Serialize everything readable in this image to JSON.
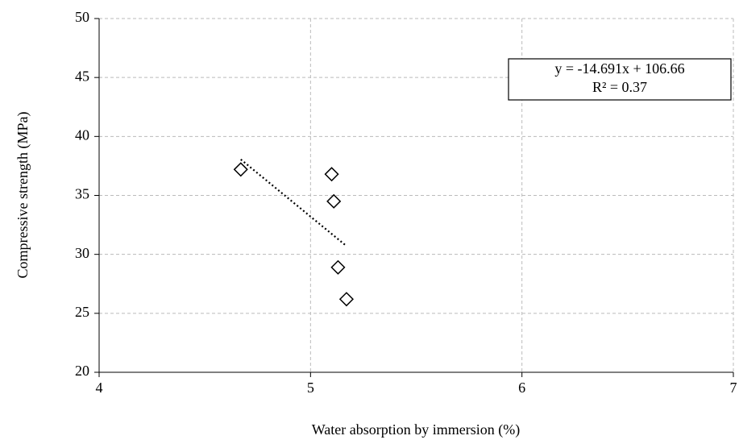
{
  "chart_data": {
    "type": "scatter",
    "x_label": "Water absorption by immersion  (%)",
    "y_label": "Compressive strength (MPa)",
    "series": [
      {
        "x": [
          4.67,
          5.1,
          5.11,
          5.13,
          5.17
        ],
        "values": [
          37.2,
          36.8,
          34.5,
          28.9,
          26.2
        ]
      }
    ],
    "trendline": {
      "slope": -14.691,
      "intercept": 106.66,
      "style": "dotted"
    },
    "annotation": [
      "y = -14.691x + 106.66",
      "R² = 0.37"
    ],
    "xlim": [
      4,
      7
    ],
    "xticks": [
      4,
      5,
      6,
      7
    ],
    "ylim": [
      20,
      50
    ],
    "yticks": [
      20,
      25,
      30,
      35,
      40,
      45,
      50
    ],
    "grid": true
  }
}
